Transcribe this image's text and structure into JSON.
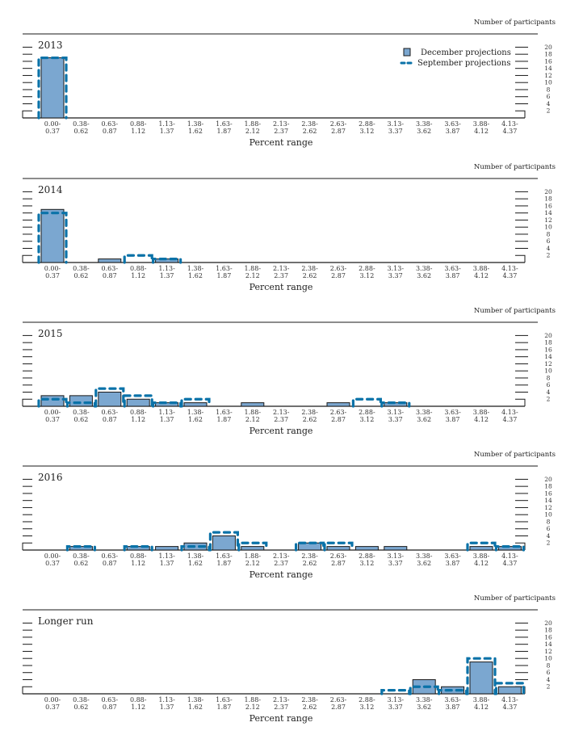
{
  "chart_data": {
    "type": "bar",
    "ylabel": "Number of participants",
    "xlabel": "Percent range",
    "ylim": [
      0,
      20
    ],
    "yticks": [
      2,
      4,
      6,
      8,
      10,
      12,
      14,
      16,
      18,
      20
    ],
    "categories": [
      [
        "0.00-",
        "0.37"
      ],
      [
        "0.38-",
        "0.62"
      ],
      [
        "0.63-",
        "0.87"
      ],
      [
        "0.88-",
        "1.12"
      ],
      [
        "1.13-",
        "1.37"
      ],
      [
        "1.38-",
        "1.62"
      ],
      [
        "1.63-",
        "1.87"
      ],
      [
        "1.88-",
        "2.12"
      ],
      [
        "2.13-",
        "2.37"
      ],
      [
        "2.38-",
        "2.62"
      ],
      [
        "2.63-",
        "2.87"
      ],
      [
        "2.88-",
        "3.12"
      ],
      [
        "3.13-",
        "3.37"
      ],
      [
        "3.38-",
        "3.62"
      ],
      [
        "3.63-",
        "3.87"
      ],
      [
        "3.88-",
        "4.12"
      ],
      [
        "4.13-",
        "4.37"
      ]
    ],
    "legend": {
      "position": "top-right",
      "entries": [
        {
          "name": "December projections",
          "style": "filled-bar",
          "color": "#7ba7d0"
        },
        {
          "name": "September projections",
          "style": "dashed-outline",
          "color": "#0a72a8"
        }
      ]
    },
    "panels": [
      {
        "title": "2013",
        "series": [
          {
            "name": "December projections",
            "values": [
              17,
              0,
              0,
              0,
              0,
              0,
              0,
              0,
              0,
              0,
              0,
              0,
              0,
              0,
              0,
              0,
              0
            ]
          },
          {
            "name": "September projections",
            "values": [
              17,
              0,
              0,
              0,
              0,
              0,
              0,
              0,
              0,
              0,
              0,
              0,
              0,
              0,
              0,
              0,
              0
            ]
          }
        ]
      },
      {
        "title": "2014",
        "series": [
          {
            "name": "December projections",
            "values": [
              15,
              0,
              1,
              0,
              1,
              0,
              0,
              0,
              0,
              0,
              0,
              0,
              0,
              0,
              0,
              0,
              0
            ]
          },
          {
            "name": "September projections",
            "values": [
              14,
              0,
              0,
              2,
              1,
              0,
              0,
              0,
              0,
              0,
              0,
              0,
              0,
              0,
              0,
              0,
              0
            ]
          }
        ]
      },
      {
        "title": "2015",
        "series": [
          {
            "name": "December projections",
            "values": [
              3,
              3,
              4,
              2,
              1,
              1,
              0,
              1,
              0,
              0,
              1,
              0,
              1,
              0,
              0,
              0,
              0
            ]
          },
          {
            "name": "September projections",
            "values": [
              2,
              1,
              5,
              3,
              1,
              2,
              0,
              0,
              0,
              0,
              0,
              2,
              1,
              0,
              0,
              0,
              0
            ]
          }
        ]
      },
      {
        "title": "2016",
        "series": [
          {
            "name": "December projections",
            "values": [
              0,
              1,
              0,
              1,
              1,
              2,
              4,
              1,
              0,
              2,
              1,
              1,
              1,
              0,
              0,
              1,
              1
            ]
          },
          {
            "name": "September projections",
            "values": [
              0,
              1,
              0,
              1,
              0,
              1,
              5,
              2,
              0,
              2,
              2,
              0,
              0,
              0,
              0,
              2,
              1
            ]
          }
        ]
      },
      {
        "title": "Longer run",
        "series": [
          {
            "name": "December projections",
            "values": [
              0,
              0,
              0,
              0,
              0,
              0,
              0,
              0,
              0,
              0,
              0,
              0,
              0,
              4,
              2,
              9,
              2
            ]
          },
          {
            "name": "September projections",
            "values": [
              0,
              0,
              0,
              0,
              0,
              0,
              0,
              0,
              0,
              0,
              0,
              0,
              1,
              2,
              1,
              10,
              3
            ]
          }
        ]
      }
    ]
  },
  "colors": {
    "december_fill": "#7ba7d0",
    "december_stroke": "#1a1a1a",
    "september_stroke": "#0a72a8",
    "axis": "#1a1a1a"
  }
}
